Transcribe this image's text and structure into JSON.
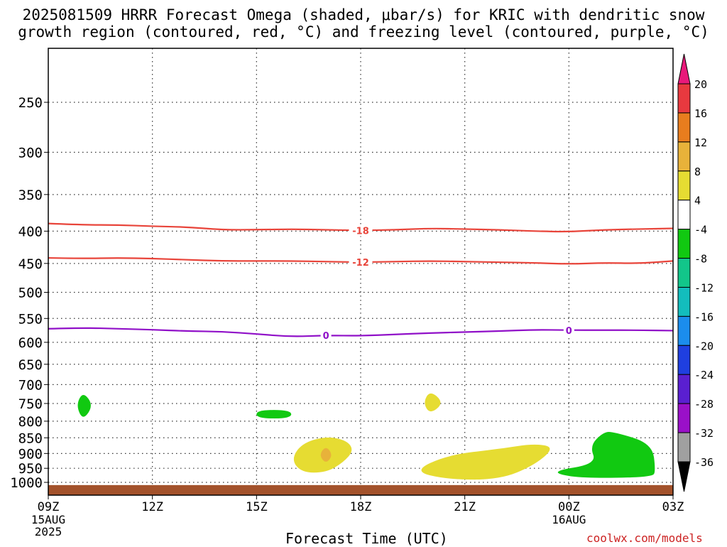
{
  "title_line1": "2025081509 HRRR Forecast Omega (shaded, μbar/s) for KRIC with dendritic snow",
  "title_line2": "growth region (contoured, red, °C) and freezing level (contoured, purple, °C)",
  "xlabel": "Forecast Time (UTC)",
  "credit": "coolwx.com/models",
  "chart_data": {
    "type": "heatmap",
    "x_axis": {
      "ticks": [
        "09Z",
        "12Z",
        "15Z",
        "18Z",
        "21Z",
        "00Z",
        "03Z"
      ],
      "tick_hours": [
        9,
        12,
        15,
        18,
        21,
        24,
        27
      ],
      "range_hours": [
        9,
        27
      ],
      "date_labels": [
        {
          "tick": "09Z",
          "lines": [
            "15AUG",
            "2025"
          ]
        },
        {
          "tick": "00Z",
          "lines": [
            "16AUG"
          ]
        }
      ],
      "grid": true
    },
    "y_axis": {
      "label": "",
      "units": "hPa",
      "ticks": [
        250,
        300,
        350,
        400,
        450,
        500,
        550,
        600,
        650,
        700,
        750,
        800,
        850,
        900,
        950,
        1000
      ],
      "range": [
        200,
        1025
      ],
      "scale": "log",
      "grid": true
    },
    "colorbar": {
      "labels": [
        "20",
        "16",
        "12",
        "8",
        "4",
        "-4",
        "-8",
        "-12",
        "-16",
        "-20",
        "-24",
        "-28",
        "-32",
        "-36"
      ],
      "colors": [
        "#e8197a",
        "#e8393f",
        "#e87d1e",
        "#e8b23a",
        "#e6dc32",
        "#ffffff",
        "#11c911",
        "#12c68a",
        "#13bdbd",
        "#1b8ded",
        "#1f3fe0",
        "#5a1fd0",
        "#9a10c8",
        "#a0a0a0",
        "#000000"
      ],
      "extend": "both"
    },
    "contours": [
      {
        "label": "-18",
        "color": "#e8443a",
        "kind": "dendritic snow growth",
        "points": [
          [
            9,
            389
          ],
          [
            10,
            391
          ],
          [
            11,
            391
          ],
          [
            12,
            393
          ],
          [
            13,
            394
          ],
          [
            14,
            398
          ],
          [
            15,
            398
          ],
          [
            16,
            397
          ],
          [
            17,
            398
          ],
          [
            18,
            399
          ],
          [
            19,
            398
          ],
          [
            20,
            396
          ],
          [
            21,
            397
          ],
          [
            22,
            398
          ],
          [
            23,
            400
          ],
          [
            24,
            401
          ],
          [
            25,
            398
          ],
          [
            26,
            397
          ],
          [
            27,
            396
          ]
        ]
      },
      {
        "label": "-12",
        "color": "#e8443a",
        "kind": "dendritic snow growth",
        "points": [
          [
            9,
            441
          ],
          [
            10,
            442
          ],
          [
            11,
            441
          ],
          [
            12,
            442
          ],
          [
            13,
            444
          ],
          [
            14,
            446
          ],
          [
            15,
            446
          ],
          [
            16,
            446
          ],
          [
            17,
            447
          ],
          [
            18,
            448
          ],
          [
            19,
            447
          ],
          [
            20,
            446
          ],
          [
            21,
            447
          ],
          [
            22,
            448
          ],
          [
            23,
            449
          ],
          [
            24,
            451
          ],
          [
            25,
            449
          ],
          [
            26,
            450
          ],
          [
            27,
            446
          ]
        ]
      },
      {
        "label": "0",
        "color": "#9010c8",
        "kind": "freezing level",
        "points": [
          [
            9,
            571
          ],
          [
            10,
            569
          ],
          [
            11,
            571
          ],
          [
            12,
            573
          ],
          [
            13,
            576
          ],
          [
            14,
            577
          ],
          [
            15,
            582
          ],
          [
            16,
            588
          ],
          [
            17,
            585
          ],
          [
            18,
            586
          ],
          [
            19,
            583
          ],
          [
            20,
            580
          ],
          [
            21,
            578
          ],
          [
            22,
            576
          ],
          [
            23,
            573
          ],
          [
            24,
            574
          ],
          [
            25,
            574
          ],
          [
            26,
            574
          ],
          [
            27,
            575
          ]
        ]
      }
    ],
    "shaded_areas": [
      {
        "category": "-8",
        "color": "#11c911",
        "points": [
          [
            10.0,
            718
          ],
          [
            10.3,
            755
          ],
          [
            10.0,
            798
          ],
          [
            9.8,
            755
          ]
        ]
      },
      {
        "category": "-8",
        "color": "#11c911",
        "points": [
          [
            15.0,
            768
          ],
          [
            16.0,
            768
          ],
          [
            16.0,
            792
          ],
          [
            15.0,
            792
          ]
        ]
      },
      {
        "category": "-8",
        "color": "#11c911",
        "points": [
          [
            25.0,
            832
          ],
          [
            25.3,
            832
          ],
          [
            26.4,
            868
          ],
          [
            26.5,
            960
          ],
          [
            26.4,
            980
          ],
          [
            25.0,
            985
          ],
          [
            24.0,
            980
          ],
          [
            23.5,
            960
          ],
          [
            24.8,
            935
          ],
          [
            24.6,
            875
          ]
        ]
      },
      {
        "category": "4",
        "color": "#e6dc32",
        "points": [
          [
            17.0,
            845
          ],
          [
            17.6,
            858
          ],
          [
            17.8,
            890
          ],
          [
            17.5,
            930
          ],
          [
            17.0,
            965
          ],
          [
            16.3,
            965
          ],
          [
            16.0,
            920
          ],
          [
            16.3,
            868
          ]
        ]
      },
      {
        "category": "8",
        "color": "#e8b23a",
        "points": [
          [
            17.0,
            875
          ],
          [
            17.2,
            905
          ],
          [
            17.0,
            935
          ],
          [
            16.8,
            905
          ]
        ]
      },
      {
        "category": "4",
        "color": "#e6dc32",
        "points": [
          [
            20.0,
            715
          ],
          [
            20.4,
            748
          ],
          [
            20.0,
            780
          ],
          [
            19.8,
            748
          ]
        ]
      },
      {
        "category": "4",
        "color": "#e6dc32",
        "points": [
          [
            20.5,
            905
          ],
          [
            22.0,
            885
          ],
          [
            23.0,
            868
          ],
          [
            23.6,
            880
          ],
          [
            23.0,
            940
          ],
          [
            22.0,
            990
          ],
          [
            20.5,
            990
          ],
          [
            19.5,
            960
          ]
        ]
      }
    ],
    "terrain": {
      "color": "#a3522b",
      "above_hPa": 1010
    }
  }
}
